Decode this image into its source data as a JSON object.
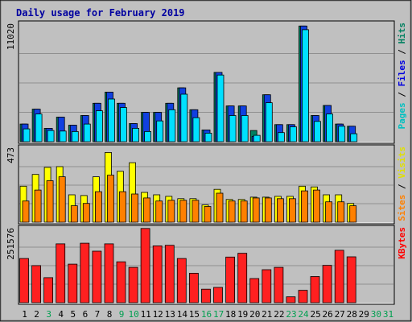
{
  "chart_data": {
    "type": "bar",
    "title": "Daily usage for February 2019",
    "categories": [
      "1",
      "2",
      "3",
      "4",
      "5",
      "6",
      "7",
      "8",
      "9",
      "10",
      "11",
      "12",
      "13",
      "14",
      "15",
      "16",
      "17",
      "18",
      "19",
      "20",
      "21",
      "22",
      "23",
      "24",
      "25",
      "26",
      "27",
      "28",
      "29",
      "30",
      "31"
    ],
    "weekend_days": [
      3,
      9,
      10,
      16,
      17,
      23,
      24,
      30,
      31
    ],
    "panels": [
      {
        "id": "top",
        "ymax_label": "11020",
        "ymax": 11020,
        "right_label": [
          {
            "text": "Pages",
            "color": "#00c0c0"
          },
          {
            "text": " / ",
            "color": "#000000"
          },
          {
            "text": "Files",
            "color": "#0000e0"
          },
          {
            "text": " / ",
            "color": "#000000"
          },
          {
            "text": "Hits",
            "color": "#008060"
          }
        ],
        "series": [
          {
            "name": "Hits",
            "color": "#008060",
            "values": [
              1650,
              3050,
              1250,
              2300,
              1550,
              2450,
              3600,
              4650,
              3600,
              1700,
              2750,
              2750,
              3600,
              5050,
              3000,
              1100,
              6500,
              3350,
              3350,
              1050,
              4400,
              1600,
              1600,
              10850,
              2450,
              3400,
              1650,
              1450,
              0,
              0,
              0
            ]
          },
          {
            "name": "Files",
            "color": "#1040e0",
            "values": [
              1650,
              3050,
              1250,
              2300,
              1550,
              2450,
              3600,
              4650,
              3600,
              1700,
              2750,
              2750,
              3600,
              5050,
              3000,
              1100,
              6500,
              3350,
              3350,
              500,
              4400,
              1600,
              1600,
              10850,
              2450,
              3400,
              1650,
              1450,
              0,
              0,
              0
            ]
          },
          {
            "name": "Pages",
            "color": "#00e0ff",
            "values": [
              1200,
              2600,
              1050,
              1000,
              950,
              1650,
              2900,
              4000,
              3200,
              1250,
              950,
              1950,
              3000,
              4450,
              2250,
              800,
              6250,
              2450,
              2450,
              600,
              3650,
              850,
              1400,
              10500,
              1900,
              2600,
              1450,
              750,
              0,
              0,
              0
            ]
          }
        ]
      },
      {
        "id": "middle",
        "ymax_label": "473",
        "ymax": 473,
        "right_label": [
          {
            "text": "Sites",
            "color": "#ff8000"
          },
          {
            "text": " / ",
            "color": "#000000"
          },
          {
            "text": "Visits",
            "color": "#e0e000"
          }
        ],
        "series": [
          {
            "name": "Visits",
            "color": "#ffff00",
            "values": [
              230,
              305,
              350,
              355,
              175,
              170,
              290,
              445,
              325,
              380,
              190,
              175,
              165,
              150,
              150,
              110,
              210,
              145,
              145,
              160,
              160,
              165,
              165,
              230,
              225,
              175,
              175,
              120,
              0,
              0,
              0
            ]
          },
          {
            "name": "Sites",
            "color": "#ff8000",
            "values": [
              135,
              205,
              265,
              290,
              105,
              120,
              195,
              300,
              195,
              180,
              155,
              135,
              140,
              140,
              140,
              100,
              185,
              135,
              135,
              155,
              155,
              150,
              150,
              200,
              205,
              130,
              130,
              105,
              0,
              0,
              0
            ]
          }
        ]
      },
      {
        "id": "bottom",
        "ymax_label": "251576",
        "ymax": 251576,
        "right_label": [
          {
            "text": "KBytes",
            "color": "#ff0000"
          }
        ],
        "series": [
          {
            "name": "KBytes",
            "color": "#ff2020",
            "values": [
              150000,
              126000,
              85000,
              200000,
              131000,
              202000,
              175000,
              200000,
              139000,
              120000,
              252000,
              193000,
              195000,
              150000,
              100000,
              46000,
              52000,
              155000,
              168000,
              82000,
              112000,
              120000,
              20000,
              42000,
              89000,
              127000,
              178000,
              156000,
              0,
              0,
              0
            ]
          }
        ]
      }
    ]
  }
}
